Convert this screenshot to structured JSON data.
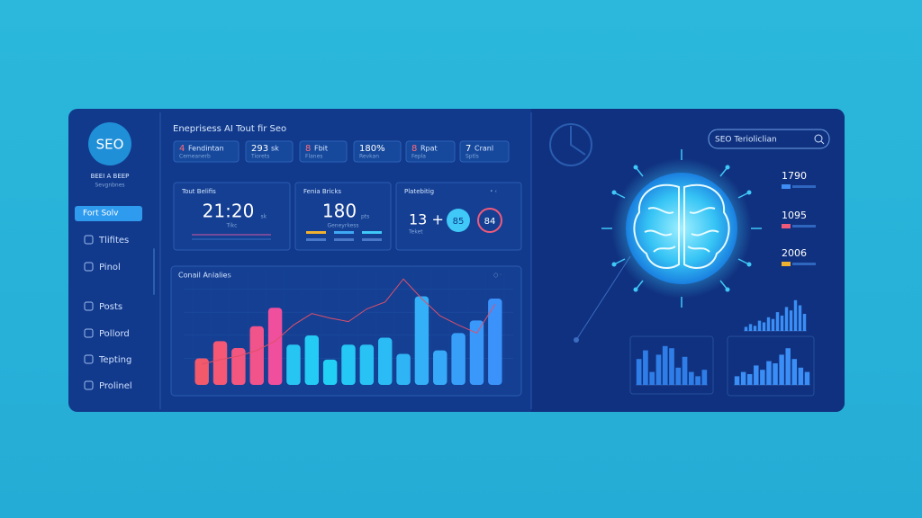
{
  "sidebar": {
    "logo": "SEO",
    "brand": "BEEI A BEEP",
    "tagline": "Sevgnbnes",
    "nav": [
      "Fort Solv",
      "Tlifites",
      "Pinol",
      "Posts",
      "Pollord",
      "Tepting",
      "Prolinel"
    ]
  },
  "header": {
    "title": "Eneprisess AI Tout fir Seo",
    "chips": [
      {
        "num": "4",
        "label": "Fendintan",
        "sub": "Cemeanerb"
      },
      {
        "num": "293",
        "label": "sk",
        "sub": "Tiorets"
      },
      {
        "num": "8",
        "label": "Fbit",
        "sub": "Flanes"
      },
      {
        "num": "180%",
        "label": "",
        "sub": "Revkan"
      },
      {
        "num": "8",
        "label": "Rpat",
        "sub": "Fepla"
      },
      {
        "num": "7",
        "label": "Cranl",
        "sub": "Sptls"
      }
    ]
  },
  "cards": [
    {
      "title": "Tout Belifis",
      "value": "21:20",
      "unit": "sk",
      "caption": "Tikc"
    },
    {
      "title": "Fenia Bricks",
      "value": "180",
      "unit": "pts",
      "caption": "Geneyrkess"
    },
    {
      "title": "Platebitig",
      "value": "13 +",
      "caption": "Teket",
      "badges": [
        "85",
        "84"
      ]
    }
  ],
  "chart_data": {
    "type": "bar",
    "title": "Conail Anlalies",
    "categories": [
      null,
      null,
      null,
      null,
      null,
      null,
      null,
      null,
      null,
      null,
      null,
      null,
      null,
      null,
      null,
      null,
      null
    ],
    "values": [
      23,
      38,
      32,
      51,
      67,
      35,
      43,
      22,
      35,
      35,
      41,
      27,
      77,
      30,
      45,
      56,
      75
    ],
    "colors": [
      "#f2596b",
      "#f45874",
      "#f3567f",
      "#f1538b",
      "#ef4f9c",
      "#27c6f2",
      "#24cbf4",
      "#22cff5",
      "#25c8f4",
      "#28c2f4",
      "#2bbcf5",
      "#2fb5f6",
      "#33b0f7",
      "#36aaf8",
      "#389ff9",
      "#3a98fa",
      "#3c92fb"
    ],
    "line_values": [
      18,
      22,
      25,
      30,
      38,
      52,
      62,
      58,
      55,
      66,
      72,
      92,
      75,
      60,
      52,
      45,
      70
    ],
    "line_color": "#e0506a",
    "ylim": [
      0,
      100
    ]
  },
  "right": {
    "search": "SEO Terioliclian",
    "stats": [
      "1790",
      "1095",
      "2006"
    ]
  },
  "mini_charts": [
    {
      "values": [
        12,
        20,
        15,
        30,
        25,
        40,
        35,
        55,
        45,
        70,
        60,
        90,
        75,
        50
      ],
      "color": "#3a8ef5"
    },
    {
      "values": [
        60,
        80,
        30,
        70,
        90,
        85,
        40,
        65,
        30,
        20,
        35
      ],
      "color": "#2f7ee8"
    },
    {
      "values": [
        20,
        30,
        25,
        45,
        35,
        55,
        50,
        70,
        85,
        60,
        40,
        30
      ],
      "color": "#3a8ef5"
    }
  ]
}
